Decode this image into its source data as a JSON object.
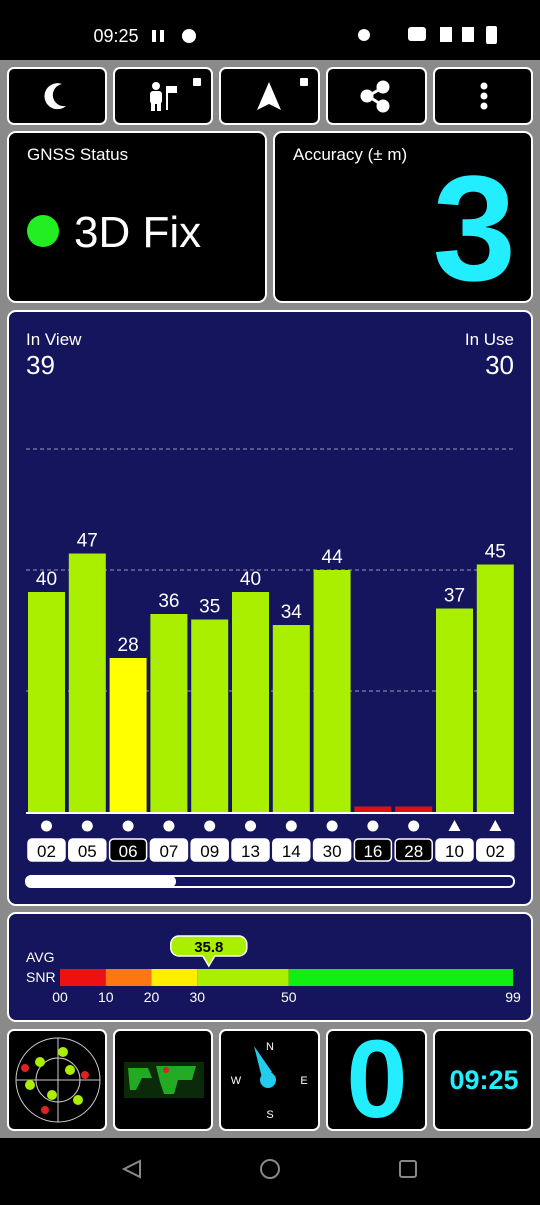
{
  "status_bar": {
    "time": "09:25"
  },
  "gnss_status": {
    "label": "GNSS Status",
    "value": "3D Fix"
  },
  "accuracy": {
    "label": "Accuracy (± m)",
    "value": 3
  },
  "chart_data": {
    "type": "bar",
    "in_view_label": "In View",
    "in_view": 39,
    "in_use_label": "In Use",
    "in_use": 30,
    "categories": [
      "02",
      "05",
      "06",
      "07",
      "09",
      "13",
      "14",
      "30",
      "16",
      "28",
      "10",
      "02"
    ],
    "values": [
      40,
      47,
      28,
      36,
      35,
      40,
      34,
      44,
      1,
      1,
      37,
      45
    ],
    "value_labels": [
      "40",
      "47",
      "28",
      "36",
      "35",
      "40",
      "34",
      "44",
      null,
      null,
      "37",
      "45"
    ],
    "colors": [
      "#aaee00",
      "#aaee00",
      "#ffff00",
      "#aaee00",
      "#aaee00",
      "#aaee00",
      "#aaee00",
      "#aaee00",
      "#dd1111",
      "#dd1111",
      "#aaee00",
      "#aaee00"
    ],
    "markers": [
      "circle",
      "circle",
      "circle",
      "circle",
      "circle",
      "circle",
      "circle",
      "circle",
      "circle",
      "circle",
      "triangle",
      "triangle"
    ],
    "used": [
      true,
      true,
      false,
      true,
      true,
      true,
      true,
      true,
      false,
      false,
      true,
      true
    ],
    "ylim": [
      0,
      66
    ],
    "gridlines": [
      22,
      44,
      66
    ]
  },
  "snr": {
    "label_top": "AVG",
    "label_bottom": "SNR",
    "avg": 35.8,
    "xlim": [
      0,
      99
    ],
    "xticks": [
      {
        "value": 0,
        "label": "00"
      },
      10,
      20,
      30,
      50,
      99
    ],
    "bands": [
      {
        "from": 0,
        "to": 10,
        "color": "#ee1111"
      },
      {
        "from": 10,
        "to": 20,
        "color": "#ff7711"
      },
      {
        "from": 20,
        "to": 30,
        "color": "#ffee00"
      },
      {
        "from": 30,
        "to": 50,
        "color": "#aaee00"
      },
      {
        "from": 50,
        "to": 99,
        "color": "#11ee11"
      }
    ]
  },
  "bottom": {
    "compass": {
      "n": "N",
      "e": "E",
      "s": "S",
      "w": "W"
    },
    "speed": 0,
    "clock": "09:25"
  }
}
